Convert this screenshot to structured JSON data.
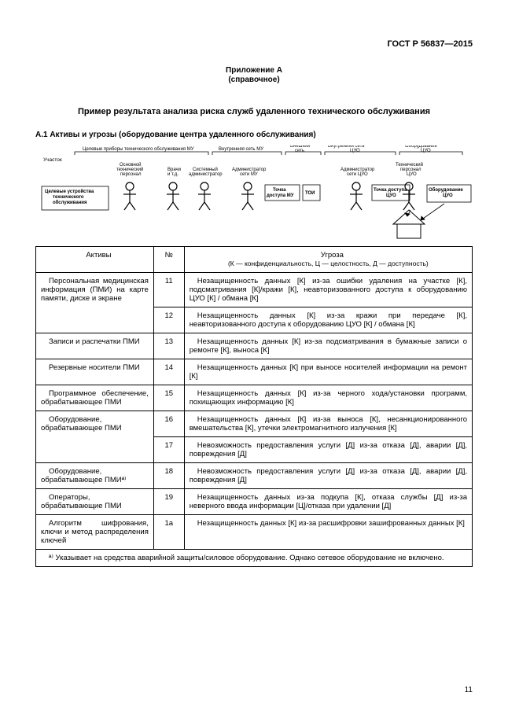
{
  "header": {
    "code": "ГОСТ Р 56837—2015"
  },
  "appendix": {
    "line1": "Приложение А",
    "line2": "(справочное)"
  },
  "title": "Пример результата анализа риска служб удаленного технического обслуживания",
  "subtitle": "А.1  Активы и угрозы (оборудование центра удаленного обслуживания)",
  "diagram": {
    "zones_label": "Участок",
    "zones": [
      "Целевые приборы технического обслуживания МУ",
      "Внутренняя сеть МУ",
      "Внешняя сеть",
      "Внутренняя сеть ЦУО",
      "Оборудование ЦУО"
    ],
    "actors": [
      {
        "top": "Основной технический персонал",
        "box": "Целевые устройства технического обслуживания"
      },
      {
        "top": "Врачи и т.д."
      },
      {
        "top": "Системный администратор"
      },
      {
        "top": "Администратор сети МУ",
        "adj": "Точка доступа МУ",
        "adj2": "ТОИ"
      },
      {
        "top": "Администратор сети ЦУО",
        "adj": "Точка доступа ЦУО"
      },
      {
        "top": "Технический персонал ЦУО",
        "box": "Оборудование ЦУО"
      }
    ]
  },
  "table": {
    "col_asset": "Активы",
    "col_num": "№",
    "col_threat": "Угроза",
    "legend": "(К — конфиденциальность, Ц — целостность, Д — доступность)",
    "rows": [
      {
        "asset": "Персональная медицинская информация (ПМИ) на карте памяти, диске и экране",
        "num": "11",
        "threat": "Незащищенность данных [К] из-за ошибки удаления на участке [К], подсматривания [К]/кражи [К], неавторизованного доступа к оборудованию ЦУО [К] / обмана [К]"
      },
      {
        "asset": "",
        "num": "12",
        "threat": "Незащищенность данных [К] из-за кражи при передаче [К], неавторизованного доступа к оборудованию ЦУО [К] / обмана [К]"
      },
      {
        "asset": "Записи и распечатки ПМИ",
        "num": "13",
        "threat": "Незащищенность данных [К] из-за подсматривания в бумажные записи о ремонте [К], выноса [К]"
      },
      {
        "asset": "Резервные носители ПМИ",
        "num": "14",
        "threat": "Незащищенность данных [К] при выносе носителей информации на ремонт [К]"
      },
      {
        "asset": "Программное обеспечение, обрабатывающее ПМИ",
        "num": "15",
        "threat": "Незащищенность данных [К] из-за черного хода/установки программ, похищающих информацию [К]"
      },
      {
        "asset": "Оборудование, обрабатывающее ПМИ",
        "num": "16",
        "threat": "Незащищенность данных [К] из-за выноса [К], несанкционированного вмешательства [К], утечки электромагнитного излучения [К]"
      },
      {
        "asset": "",
        "num": "17",
        "threat": "Невозможность предоставления услуги [Д] из-за отказа [Д], аварии [Д], повреждения [Д]"
      },
      {
        "asset": "Оборудование, обрабатывающее ПМИª⁾",
        "num": "18",
        "threat": "Невозможность предоставления услуги [Д] из-за отказа [Д], аварии [Д], повреждения [Д]"
      },
      {
        "asset": "Операторы, обрабатывающие ПМИ",
        "num": "19",
        "threat": "Незащищенность данных из-за подкупа [К], отказа службы [Д] из-за неверного ввода информации [Ц]/отказа при удалении [Д]"
      },
      {
        "asset": "Алгоритм шифрования, ключи и метод распределения ключей",
        "num": "1a",
        "threat": "Незащищенность данных [К] из-за расшифровки зашифрованных данных [К]"
      }
    ]
  },
  "footnote": "ª⁾ Указывает на средства аварийной защиты/силовое оборудование. Однако сетевое оборудование не включено.",
  "pagenum": "11"
}
